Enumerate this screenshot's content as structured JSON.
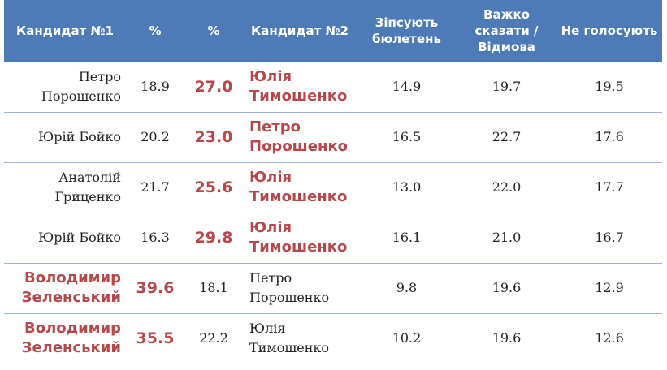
{
  "colors": {
    "header_bg": "#4f7ab8",
    "header_text": "#ffffff",
    "winner": "#b5484a",
    "row_divider": "#9db4d6"
  },
  "headers": {
    "cand1": "Кандидат №1",
    "pct1": "%",
    "pct2": "%",
    "cand2": "Кандидат №2",
    "spoil": "Зіпсують бюлетень",
    "hard": "Важко сказати / Відмова",
    "novote": "Не голосують"
  },
  "rows": [
    {
      "cand1": "Петро Порошенко",
      "pct1": "18.9",
      "pct2": "27.0",
      "cand2": "Юлія Тимошенко",
      "spoil": "14.9",
      "hard": "19.7",
      "novote": "19.5"
    },
    {
      "cand1": "Юрій Бойко",
      "pct1": "20.2",
      "pct2": "23.0",
      "cand2": "Петро Порошенко",
      "spoil": "16.5",
      "hard": "22.7",
      "novote": "17.6"
    },
    {
      "cand1": "Анатолій Гриценко",
      "pct1": "21.7",
      "pct2": "25.6",
      "cand2": "Юлія Тимошенко",
      "spoil": "13.0",
      "hard": "22.0",
      "novote": "17.7"
    },
    {
      "cand1": "Юрій Бойко",
      "pct1": "16.3",
      "pct2": "29.8",
      "cand2": "Юлія Тимошенко",
      "spoil": "16.1",
      "hard": "21.0",
      "novote": "16.7"
    },
    {
      "cand1": "Володимир Зеленський",
      "pct1": "39.6",
      "pct2": "18.1",
      "cand2": "Петро Порошенко",
      "spoil": "9.8",
      "hard": "19.6",
      "novote": "12.9"
    },
    {
      "cand1": "Володимир Зеленський",
      "pct1": "35.5",
      "pct2": "22.2",
      "cand2": "Юлія Тимошенко",
      "spoil": "10.2",
      "hard": "19.6",
      "novote": "12.6"
    }
  ]
}
